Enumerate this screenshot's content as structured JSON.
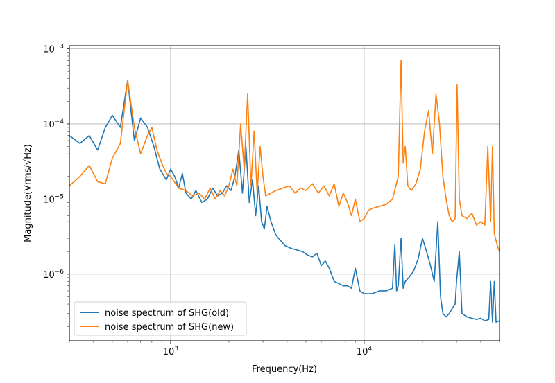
{
  "chart_data": {
    "type": "line",
    "title": "",
    "xlabel": "Frequency(Hz)",
    "ylabel": "Magnitude(Vrms/√Hz)",
    "x_scale": "log",
    "y_scale": "log",
    "xlim": [
      300,
      50000
    ],
    "ylim": [
      1.3e-07,
      0.0011
    ],
    "grid": true,
    "legend_position": "lower-left",
    "x_ticks": [
      {
        "value": 1000,
        "base": "10",
        "exp": "3"
      },
      {
        "value": 10000,
        "base": "10",
        "exp": "4"
      }
    ],
    "y_ticks": [
      {
        "value": 1e-06,
        "base": "10",
        "exp": "−6"
      },
      {
        "value": 1e-05,
        "base": "10",
        "exp": "−5"
      },
      {
        "value": 0.0001,
        "base": "10",
        "exp": "−4"
      },
      {
        "value": 0.001,
        "base": "10",
        "exp": "−3"
      }
    ],
    "series": [
      {
        "name": "noise spectrum of SHG(old)",
        "color": "#1f77b4",
        "x": [
          300,
          340,
          380,
          420,
          460,
          500,
          550,
          600,
          650,
          700,
          760,
          820,
          880,
          950,
          1000,
          1050,
          1100,
          1150,
          1200,
          1280,
          1350,
          1450,
          1550,
          1650,
          1750,
          1850,
          1950,
          2050,
          2150,
          2250,
          2350,
          2450,
          2550,
          2650,
          2750,
          2850,
          2950,
          3050,
          3150,
          3300,
          3500,
          3700,
          3900,
          4200,
          4500,
          4800,
          5100,
          5400,
          5700,
          6000,
          6300,
          6600,
          7000,
          7400,
          7800,
          8200,
          8600,
          9000,
          9500,
          10000,
          11000,
          12000,
          13000,
          14000,
          14400,
          14700,
          15000,
          15500,
          15900,
          16300,
          17000,
          18000,
          19000,
          20000,
          21000,
          22000,
          23000,
          24000,
          24800,
          25500,
          26500,
          27500,
          28500,
          29500,
          30000,
          31000,
          32000,
          34000,
          36000,
          38000,
          40000,
          42000,
          44000,
          45000,
          46000,
          47000,
          48000,
          50000
        ],
        "y": [
          7e-05,
          5.5e-05,
          7e-05,
          4.5e-05,
          9e-05,
          0.00013,
          9e-05,
          0.00038,
          6e-05,
          0.00012,
          9e-05,
          5e-05,
          2.5e-05,
          1.8e-05,
          2.5e-05,
          2e-05,
          1.4e-05,
          2.2e-05,
          1.2e-05,
          1e-05,
          1.3e-05,
          9e-06,
          1e-05,
          1.4e-05,
          1.1e-05,
          1.2e-05,
          1.5e-05,
          1.3e-05,
          2e-05,
          4.5e-05,
          1.2e-05,
          5e-05,
          9e-06,
          1.8e-05,
          6e-06,
          1.5e-05,
          5e-06,
          4e-06,
          8e-06,
          5e-06,
          3.3e-06,
          2.8e-06,
          2.4e-06,
          2.2e-06,
          2.1e-06,
          2e-06,
          1.8e-06,
          1.7e-06,
          1.9e-06,
          1.3e-06,
          1.5e-06,
          1.2e-06,
          8e-07,
          7.5e-07,
          7e-07,
          7e-07,
          6.5e-07,
          1.2e-06,
          6e-07,
          5.5e-07,
          5.5e-07,
          6e-07,
          6e-07,
          6.5e-07,
          2.5e-06,
          6e-07,
          7e-07,
          3e-06,
          6.5e-07,
          8e-07,
          9e-07,
          1.1e-06,
          1.6e-06,
          3e-06,
          2e-06,
          1.3e-06,
          8e-07,
          5e-06,
          5e-07,
          3e-07,
          2.7e-07,
          3e-07,
          3.5e-07,
          4e-07,
          8e-07,
          2e-06,
          3e-07,
          2.7e-07,
          2.6e-07,
          2.5e-07,
          2.6e-07,
          2.4e-07,
          2.5e-07,
          8e-07,
          2.3e-07,
          8e-07,
          2.3e-07,
          2.4e-07
        ]
      },
      {
        "name": "noise spectrum of SHG(new)",
        "color": "#ff7f0e",
        "x": [
          300,
          340,
          380,
          420,
          460,
          500,
          550,
          600,
          650,
          700,
          760,
          800,
          850,
          900,
          950,
          1000,
          1100,
          1200,
          1300,
          1400,
          1500,
          1600,
          1700,
          1800,
          1900,
          2000,
          2100,
          2200,
          2300,
          2400,
          2500,
          2600,
          2700,
          2800,
          2900,
          3000,
          3100,
          3300,
          3500,
          3800,
          4100,
          4400,
          4700,
          5000,
          5400,
          5800,
          6200,
          6600,
          7000,
          7400,
          7800,
          8200,
          8600,
          9000,
          9500,
          10000,
          10500,
          11000,
          12000,
          13000,
          14000,
          15000,
          15500,
          15900,
          16300,
          16800,
          17500,
          18500,
          19500,
          20500,
          21500,
          22500,
          23500,
          24500,
          25500,
          26500,
          27500,
          28500,
          29500,
          30200,
          31000,
          32000,
          34000,
          36000,
          38000,
          40000,
          42000,
          43500,
          45000,
          46000,
          47000,
          48500,
          50000
        ],
        "y": [
          1.5e-05,
          2e-05,
          2.8e-05,
          1.7e-05,
          1.6e-05,
          3.5e-05,
          5.5e-05,
          0.00038,
          9e-05,
          4e-05,
          7e-05,
          9e-05,
          4.5e-05,
          3e-05,
          2.2e-05,
          2e-05,
          1.4e-05,
          1.3e-05,
          1.1e-05,
          1.2e-05,
          1e-05,
          1.4e-05,
          1e-05,
          1.3e-05,
          1.1e-05,
          1.5e-05,
          2.5e-05,
          1.5e-05,
          0.0001,
          2.5e-05,
          0.00025,
          1.5e-05,
          8e-05,
          1.2e-05,
          5e-05,
          2e-05,
          1.1e-05,
          1.2e-05,
          1.3e-05,
          1.4e-05,
          1.5e-05,
          1.2e-05,
          1.4e-05,
          1.3e-05,
          1.6e-05,
          1.2e-05,
          1.5e-05,
          1.1e-05,
          1.6e-05,
          8e-06,
          1.2e-05,
          9e-06,
          6e-06,
          1e-05,
          5e-06,
          5.5e-06,
          7e-06,
          7.5e-06,
          8e-06,
          8.5e-06,
          1e-05,
          2e-05,
          0.0007,
          3e-05,
          5e-05,
          1.5e-05,
          1.3e-05,
          1.6e-05,
          2.5e-05,
          8e-05,
          0.00015,
          4e-05,
          0.00025,
          0.0001,
          2e-05,
          1e-05,
          6e-06,
          5e-06,
          5.5e-06,
          0.00033,
          1e-05,
          6e-06,
          5.5e-06,
          6.5e-06,
          4.5e-06,
          5e-06,
          4.5e-06,
          5e-05,
          5e-06,
          5e-05,
          3.5e-06,
          2.5e-06,
          2e-06
        ]
      }
    ]
  }
}
